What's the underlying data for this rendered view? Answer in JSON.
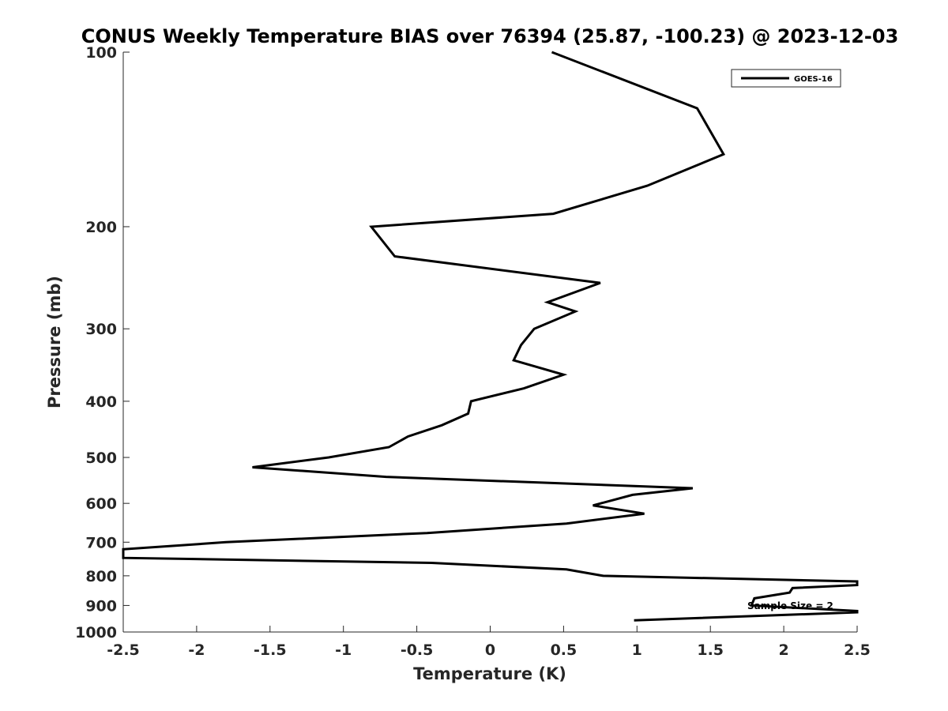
{
  "chart_data": {
    "type": "line",
    "title": "CONUS Weekly Temperature BIAS over 76394 (25.87, -100.23) @ 2023-12-03",
    "xlabel": "Temperature (K)",
    "ylabel": "Pressure (mb)",
    "xlim": [
      -2.5,
      2.5
    ],
    "ylim": [
      100,
      1000
    ],
    "yscale": "log",
    "yreversed": true,
    "xticks": [
      -2.5,
      -2,
      -1.5,
      -1,
      -0.5,
      0,
      0.5,
      1,
      1.5,
      2,
      2.5
    ],
    "xtick_labels": [
      "-2.5",
      "-2",
      "-1.5",
      "-1",
      "-0.5",
      "0",
      "0.5",
      "1",
      "1.5",
      "2",
      "2.5"
    ],
    "yticks": [
      100,
      200,
      300,
      400,
      500,
      600,
      700,
      800,
      900,
      1000
    ],
    "ytick_labels": [
      "100",
      "200",
      "300",
      "400",
      "500",
      "600",
      "700",
      "800",
      "900",
      "1000"
    ],
    "grid": false,
    "legend_position": "top-right",
    "annotation": "Sample Size = 2",
    "series": [
      {
        "name": "GOES-16",
        "color": "#000000",
        "points": [
          [
            0.42,
            100
          ],
          [
            1.41,
            125
          ],
          [
            1.59,
            150
          ],
          [
            1.07,
            170
          ],
          [
            0.43,
            190
          ],
          [
            -0.81,
            200
          ],
          [
            -0.65,
            225
          ],
          [
            0.75,
            250
          ],
          [
            0.39,
            270
          ],
          [
            0.58,
            280
          ],
          [
            0.3,
            300
          ],
          [
            0.21,
            320
          ],
          [
            0.16,
            340
          ],
          [
            0.5,
            360
          ],
          [
            0.23,
            380
          ],
          [
            -0.13,
            400
          ],
          [
            -0.15,
            420
          ],
          [
            -0.33,
            440
          ],
          [
            -0.56,
            460
          ],
          [
            -0.69,
            480
          ],
          [
            -1.1,
            500
          ],
          [
            -1.62,
            520
          ],
          [
            -0.71,
            540
          ],
          [
            1.38,
            565
          ],
          [
            0.97,
            580
          ],
          [
            0.7,
            605
          ],
          [
            1.05,
            625
          ],
          [
            0.52,
            650
          ],
          [
            -0.43,
            675
          ],
          [
            -1.8,
            700
          ],
          [
            -2.5,
            720
          ],
          [
            -2.5,
            745
          ],
          [
            -0.4,
            760
          ],
          [
            0.52,
            780
          ],
          [
            0.77,
            800
          ],
          [
            2.5,
            818
          ],
          [
            2.5,
            830
          ],
          [
            2.06,
            840
          ],
          [
            2.04,
            855
          ],
          [
            1.8,
            875
          ],
          [
            1.78,
            900
          ],
          [
            2.5,
            920
          ],
          [
            2.5,
            925
          ],
          [
            0.98,
            955
          ]
        ]
      }
    ]
  }
}
